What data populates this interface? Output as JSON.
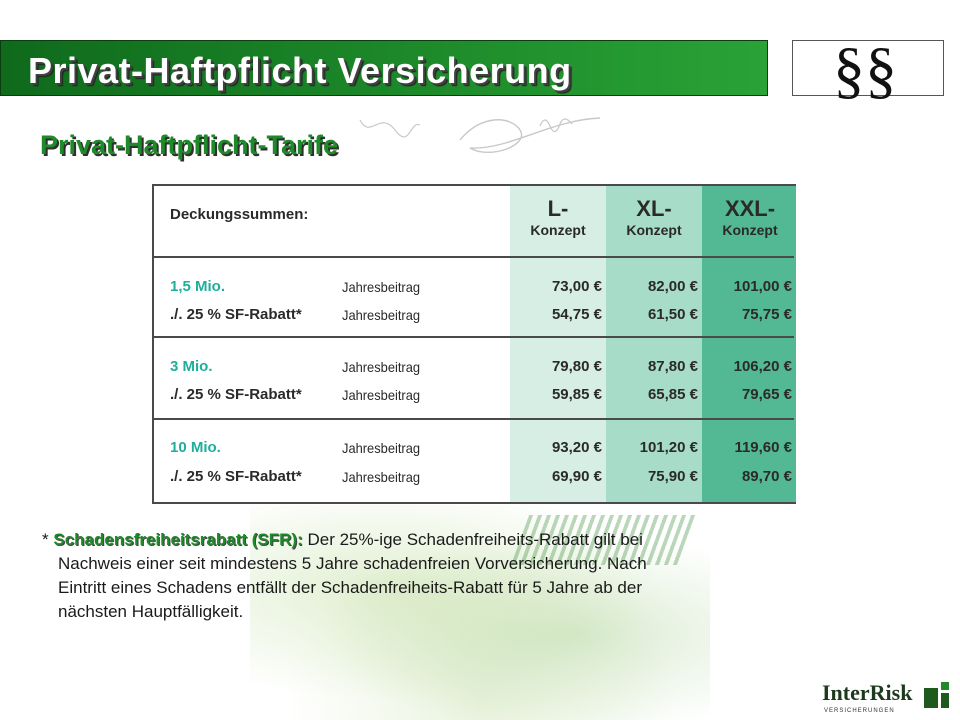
{
  "header": {
    "title": "Privat-Haftpflicht Versicherung",
    "logo_icon": "paragraph-section-icon"
  },
  "subtitle": "Privat-Haftpflicht-Tarife",
  "table": {
    "header_label": "Deckungssummen:",
    "columns": [
      {
        "name": "L-",
        "sub": "Konzept",
        "color": "#d7eee4"
      },
      {
        "name": "XL-",
        "sub": "Konzept",
        "color": "#a7dcc8"
      },
      {
        "name": "XXL-",
        "sub": "Konzept",
        "color": "#53b894"
      }
    ],
    "groups": [
      {
        "sum": "1,5 Mio.",
        "rebate_label": "./. 25 % SF-Rabatt*",
        "desc": "Jahresbeitrag",
        "prices": [
          "73,00 €",
          "82,00 €",
          "101,00 €"
        ],
        "rebate_prices": [
          "54,75 €",
          "61,50 €",
          "75,75 €"
        ]
      },
      {
        "sum": "3 Mio.",
        "rebate_label": "./. 25 % SF-Rabatt*",
        "desc": "Jahresbeitrag",
        "prices": [
          "79,80 €",
          "87,80 €",
          "106,20 €"
        ],
        "rebate_prices": [
          "59,85 €",
          "65,85 €",
          "79,65 €"
        ]
      },
      {
        "sum": "10 Mio.",
        "rebate_label": "./. 25 % SF-Rabatt*",
        "desc": "Jahresbeitrag",
        "prices": [
          "93,20 €",
          "101,20 €",
          "119,60 €"
        ],
        "rebate_prices": [
          "69,90 €",
          "75,90 €",
          "89,70 €"
        ]
      }
    ]
  },
  "footnote": {
    "star": "*",
    "term": "Schadensfreiheitsrabatt (SFR):",
    "line1": "Der 25%-ige Schadenfreiheits-Rabatt gilt bei",
    "line2": "Nachweis einer seit mindestens 5 Jahre schadenfreien Vorversicherung. Nach",
    "line3": "Eintritt eines Schadens entfällt der Schadenfreiheits-Rabatt für 5 Jahre ab der",
    "line4": "nächsten Hauptfälligkeit."
  },
  "brand": {
    "name": "InterRisk",
    "tagline": "VERSICHERUNGEN",
    "accent": "#1e8a2a"
  }
}
